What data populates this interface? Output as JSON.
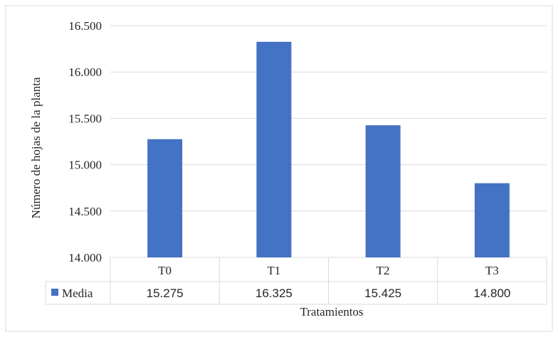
{
  "chart_data": {
    "type": "bar",
    "categories": [
      "T0",
      "T1",
      "T2",
      "T3"
    ],
    "series": [
      {
        "name": "Media",
        "values": [
          15.275,
          16.325,
          15.425,
          14.8
        ],
        "color": "#4472C4"
      }
    ],
    "table_values": [
      "15.275",
      "16.325",
      "15.425",
      "14.800"
    ],
    "ylim": [
      14.0,
      16.5
    ],
    "yticks": [
      "14.000",
      "14.500",
      "15.000",
      "15.500",
      "16.000",
      "16.500"
    ],
    "ylabel": "Número de hojas de la planta",
    "xlabel": "Tratamientos",
    "grid": true,
    "legend": "data-table-left",
    "data_table": true
  }
}
